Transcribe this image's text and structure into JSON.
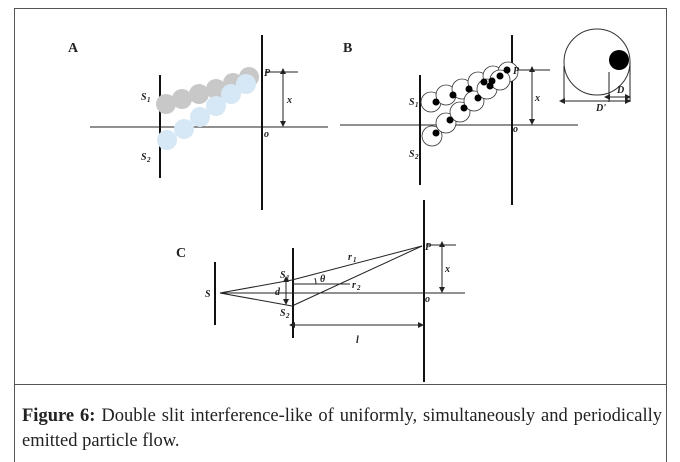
{
  "figure": {
    "panel_a": {
      "label": "A",
      "P": "P",
      "x": "x",
      "S1": [
        "S",
        "1"
      ],
      "S2": [
        "S",
        "2"
      ],
      "o": "o"
    },
    "panel_b": {
      "label": "B",
      "P": "P",
      "x": "x",
      "S1": [
        "S",
        "1"
      ],
      "S2": [
        "S",
        "2"
      ],
      "o": "o",
      "D": "D",
      "D_prime": "D'"
    },
    "panel_c": {
      "label": "C",
      "S": "S",
      "S1": [
        "S",
        "1"
      ],
      "S2": [
        "S",
        "2"
      ],
      "d": "d",
      "theta": "θ",
      "r1": [
        "r",
        "1"
      ],
      "r2": [
        "r",
        "2"
      ],
      "P": "P",
      "x": "x",
      "o": "o",
      "l": "l"
    }
  },
  "caption": {
    "label": "Figure 6:",
    "text": "Double slit interference-like of uniformly, simultaneously and periodically emitted particle flow."
  }
}
